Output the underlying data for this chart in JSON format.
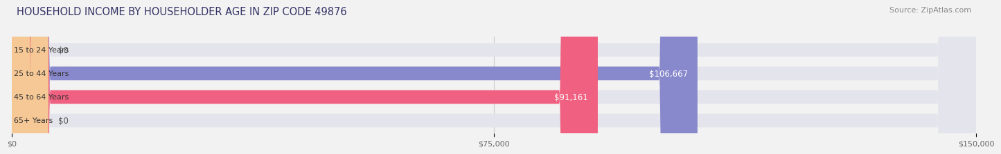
{
  "title": "HOUSEHOLD INCOME BY HOUSEHOLDER AGE IN ZIP CODE 49876",
  "source": "Source: ZipAtlas.com",
  "categories": [
    "15 to 24 Years",
    "25 to 44 Years",
    "45 to 64 Years",
    "65+ Years"
  ],
  "values": [
    0,
    106667,
    91161,
    0
  ],
  "bar_colors": [
    "#5ecfcf",
    "#8888cc",
    "#f06080",
    "#f5c896"
  ],
  "bar_labels": [
    "$0",
    "$106,667",
    "$91,161",
    "$0"
  ],
  "label_colors": [
    "#555555",
    "#ffffff",
    "#ffffff",
    "#555555"
  ],
  "xlim": [
    0,
    150000
  ],
  "xticks": [
    0,
    75000,
    150000
  ],
  "xtick_labels": [
    "$0",
    "$75,000",
    "$150,000"
  ],
  "bg_color": "#f2f2f2",
  "bar_bg_color": "#e4e4ec",
  "bar_height": 0.58,
  "title_fontsize": 10.5,
  "source_fontsize": 8,
  "label_fontsize": 8.5,
  "tick_fontsize": 8,
  "category_fontsize": 8
}
